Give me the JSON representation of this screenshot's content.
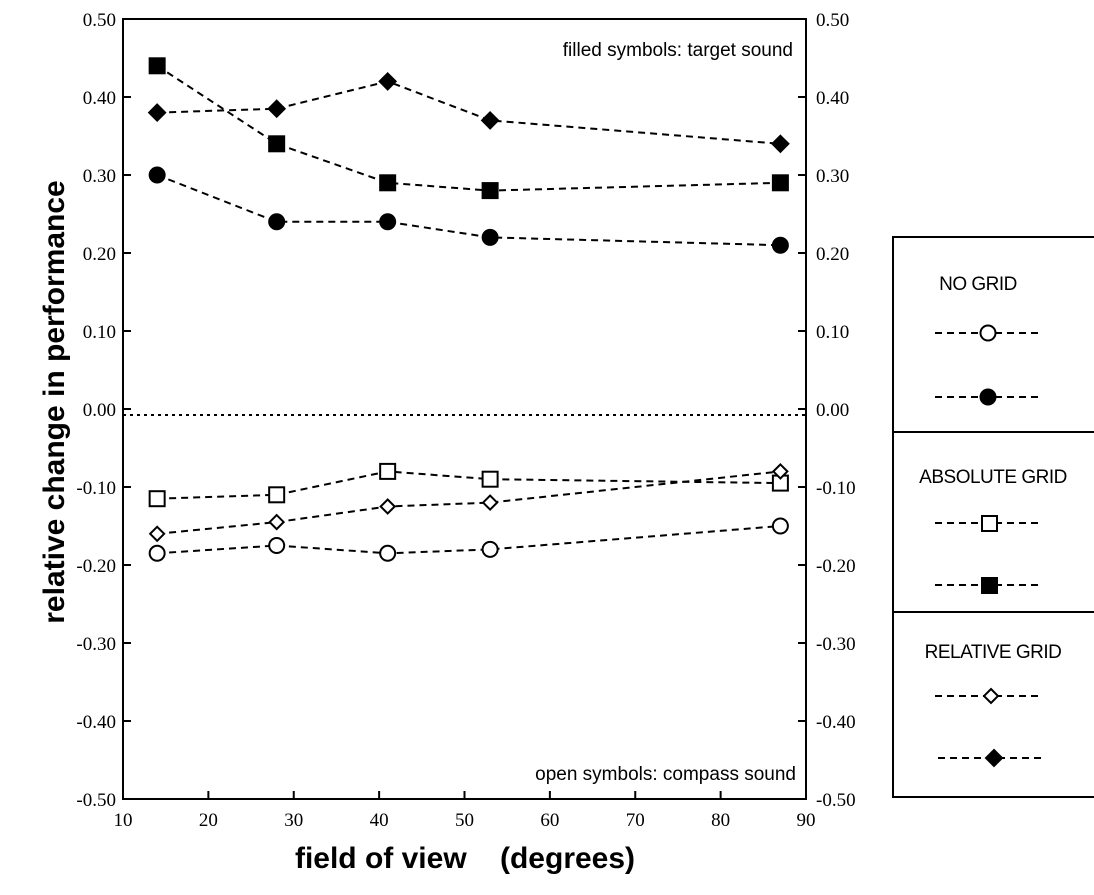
{
  "chart_data": {
    "type": "line",
    "xlabel": "field of view    (degrees)",
    "ylabel": "relative change in performance",
    "xlim": [
      10,
      90
    ],
    "ylim": [
      -0.5,
      0.5
    ],
    "x_ticks": [
      "10",
      "20",
      "30",
      "40",
      "50",
      "60",
      "70",
      "80",
      "90"
    ],
    "y_ticks": [
      "0.50",
      "0.40",
      "0.30",
      "0.20",
      "0.10",
      "0.00",
      "-0.10",
      "-0.20",
      "-0.30",
      "-0.40",
      "-0.50"
    ],
    "x": [
      14,
      28,
      41,
      53,
      87
    ],
    "grid": false,
    "zero_line": true,
    "annotations": {
      "top": "filled symbols: target sound",
      "bottom": "open symbols: compass sound"
    },
    "legend_groups": [
      {
        "title": "NO GRID"
      },
      {
        "title": "ABSOLUTE GRID"
      },
      {
        "title": "RELATIVE GRID"
      }
    ],
    "series": [
      {
        "marker": "square",
        "filled": true,
        "values": [
          0.44,
          0.34,
          0.29,
          0.28,
          0.29
        ]
      },
      {
        "marker": "diamond",
        "filled": true,
        "values": [
          0.38,
          0.385,
          0.42,
          0.37,
          0.34
        ]
      },
      {
        "marker": "circle",
        "filled": true,
        "values": [
          0.3,
          0.24,
          0.24,
          0.22,
          0.21
        ]
      },
      {
        "marker": "square",
        "filled": false,
        "values": [
          -0.115,
          -0.11,
          -0.08,
          -0.09,
          -0.095
        ]
      },
      {
        "marker": "diamond",
        "filled": false,
        "values": [
          -0.16,
          -0.145,
          -0.125,
          -0.12,
          -0.08
        ]
      },
      {
        "marker": "circle",
        "filled": false,
        "values": [
          -0.185,
          -0.175,
          -0.185,
          -0.18,
          -0.15
        ]
      }
    ]
  }
}
